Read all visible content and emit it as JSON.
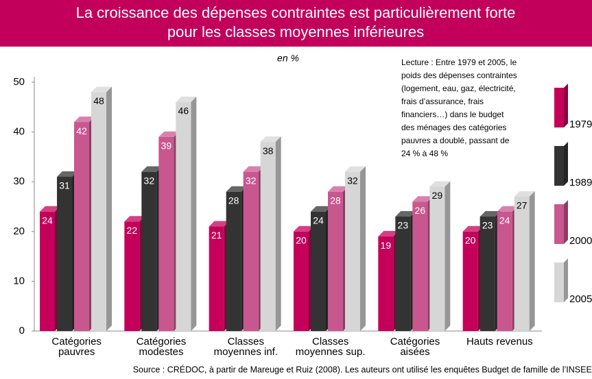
{
  "chart_data": {
    "type": "bar",
    "title": [
      "La croissance des dépenses contraintes est particulièrement forte",
      "pour les classes moyennes inférieures"
    ],
    "unit_label": "en %",
    "annotation": [
      "Lecture : Entre 1979 et 2005, le",
      "poids des dépenses contraintes",
      "(logement, eau, gaz, électricité,",
      "frais d’assurance, frais",
      "financiers…) dans le budget",
      "des ménages des catégories",
      "pauvres a doublé, passant de",
      "24 % à 48 %"
    ],
    "categories": [
      [
        "Catégories",
        "pauvres"
      ],
      [
        "Catégories",
        "modestes"
      ],
      [
        "Classes",
        "moyennes inf."
      ],
      [
        "Classes",
        "moyennes sup."
      ],
      [
        "Catégories",
        "aisées"
      ],
      [
        "Hauts revenus"
      ]
    ],
    "series": [
      {
        "name": "1979",
        "color": "#c4005a",
        "values": [
          24,
          22,
          21,
          20,
          19,
          20
        ]
      },
      {
        "name": "1989",
        "color": "#333333",
        "values": [
          31,
          32,
          28,
          24,
          23,
          23
        ]
      },
      {
        "name": "2000",
        "color": "#c9578f",
        "values": [
          42,
          39,
          32,
          28,
          26,
          24
        ]
      },
      {
        "name": "2005",
        "color": "#d6d6d6",
        "values": [
          48,
          46,
          38,
          32,
          29,
          27
        ]
      }
    ],
    "ylim": [
      0,
      50
    ],
    "yticks": [
      0,
      10,
      20,
      30,
      40,
      50
    ],
    "source": "Source : CRÉDOC, à partir de Mareuge et Ruiz (2008). Les auteurs ont utilisé les enquêtes Budget de famille de l’INSEE."
  }
}
